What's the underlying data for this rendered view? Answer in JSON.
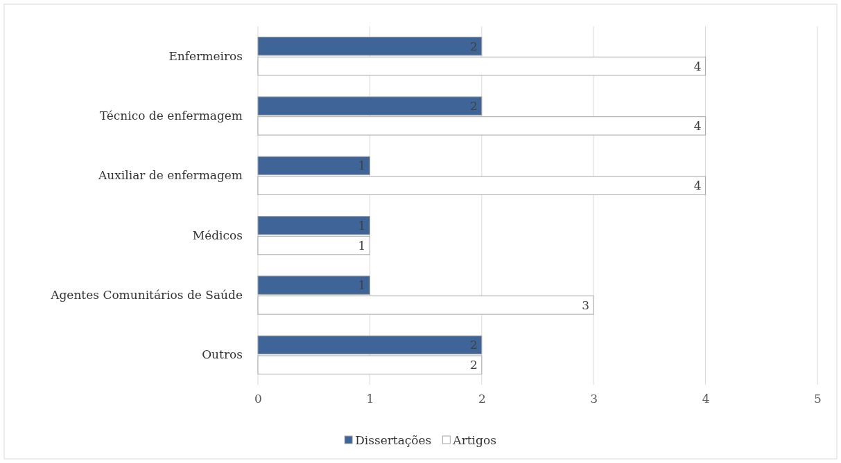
{
  "chart_data": {
    "type": "bar",
    "orientation": "horizontal",
    "categories": [
      "Enfermeiros",
      "Técnico de enfermagem",
      "Auxiliar de enfermagem",
      "Médicos",
      "Agentes Comunitários de Saúde",
      "Outros"
    ],
    "series": [
      {
        "name": "Dissertações",
        "color": "#3f6598",
        "values": [
          2,
          2,
          1,
          1,
          1,
          2
        ]
      },
      {
        "name": "Artigos",
        "color": "#ffffff",
        "values": [
          4,
          4,
          4,
          1,
          3,
          2
        ]
      }
    ],
    "xlim": [
      0,
      5
    ],
    "xticks": [
      0,
      1,
      2,
      3,
      4,
      5
    ],
    "grid": "x",
    "legend": "bottom",
    "data_labels": true
  }
}
